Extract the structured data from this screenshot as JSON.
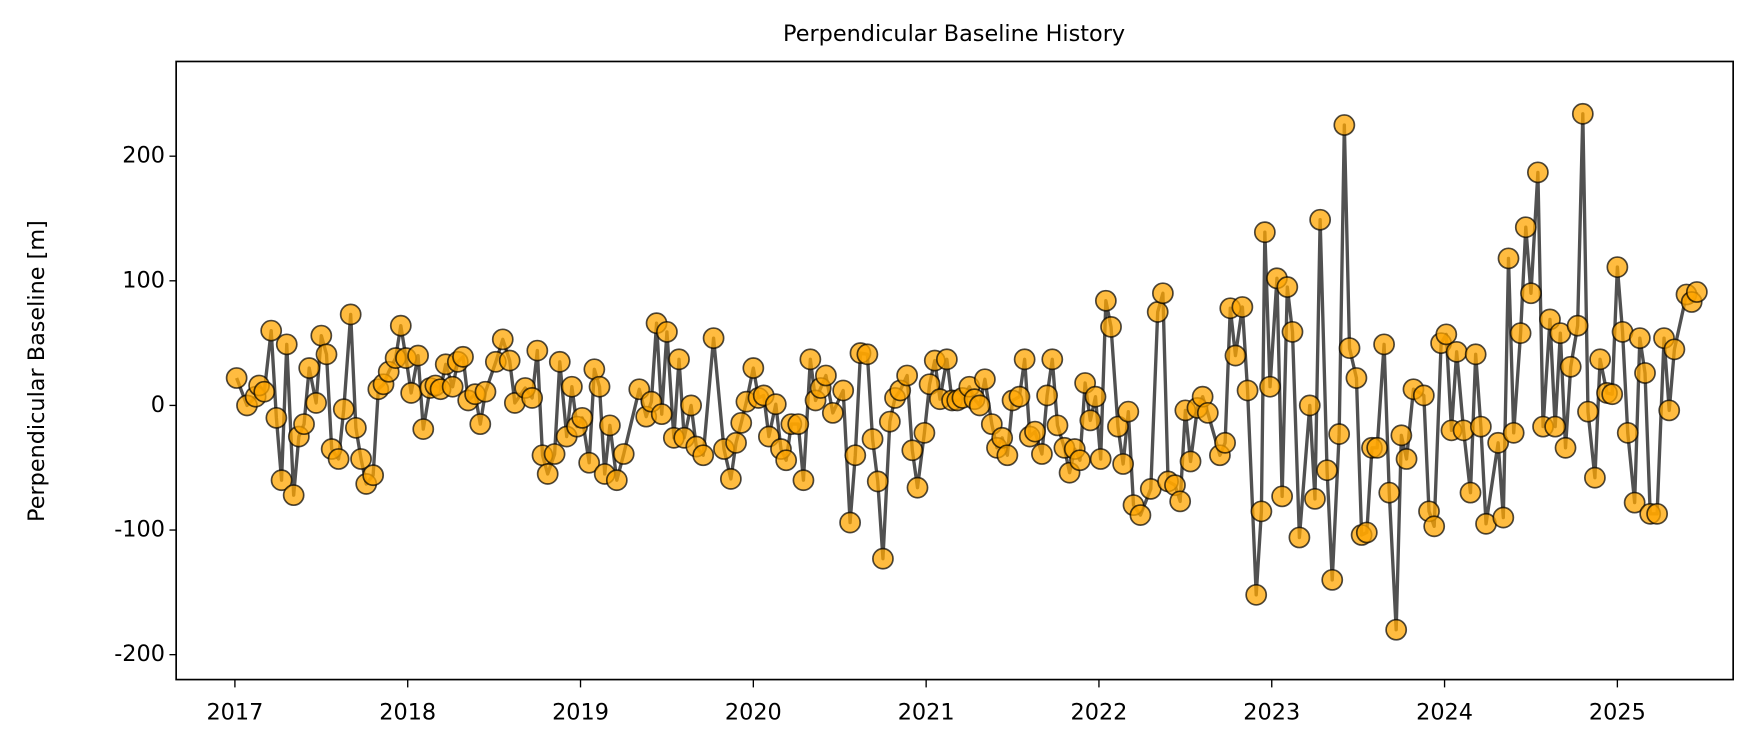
{
  "chart_data": {
    "type": "line",
    "title": "Perpendicular Baseline History",
    "y_label": "Perpendicular Baseline [m]",
    "x": [
      2017.01,
      2017.07,
      2017.12,
      2017.14,
      2017.17,
      2017.21,
      2017.24,
      2017.27,
      2017.3,
      2017.34,
      2017.37,
      2017.4,
      2017.43,
      2017.47,
      2017.5,
      2017.53,
      2017.56,
      2017.6,
      2017.63,
      2017.67,
      2017.7,
      2017.73,
      2017.76,
      2017.8,
      2017.83,
      2017.86,
      2017.89,
      2017.93,
      2017.96,
      2017.99,
      2018.02,
      2018.06,
      2018.09,
      2018.13,
      2018.16,
      2018.19,
      2018.22,
      2018.26,
      2018.29,
      2018.32,
      2018.35,
      2018.39,
      2018.42,
      2018.45,
      2018.51,
      2018.55,
      2018.59,
      2018.62,
      2018.68,
      2018.72,
      2018.75,
      2018.78,
      2018.81,
      2018.85,
      2018.88,
      2018.92,
      2018.95,
      2018.98,
      2019.01,
      2019.05,
      2019.08,
      2019.11,
      2019.14,
      2019.17,
      2019.21,
      2019.25,
      2019.34,
      2019.38,
      2019.41,
      2019.44,
      2019.47,
      2019.5,
      2019.54,
      2019.57,
      2019.6,
      2019.64,
      2019.67,
      2019.71,
      2019.77,
      2019.83,
      2019.87,
      2019.9,
      2019.93,
      2019.96,
      2020.0,
      2020.03,
      2020.06,
      2020.09,
      2020.13,
      2020.16,
      2020.19,
      2020.22,
      2020.26,
      2020.29,
      2020.33,
      2020.36,
      2020.39,
      2020.42,
      2020.46,
      2020.52,
      2020.56,
      2020.59,
      2020.62,
      2020.66,
      2020.69,
      2020.72,
      2020.75,
      2020.79,
      2020.82,
      2020.85,
      2020.89,
      2020.92,
      2020.95,
      2020.99,
      2021.02,
      2021.05,
      2021.08,
      2021.12,
      2021.15,
      2021.18,
      2021.21,
      2021.25,
      2021.28,
      2021.31,
      2021.34,
      2021.38,
      2021.41,
      2021.44,
      2021.47,
      2021.5,
      2021.54,
      2021.57,
      2021.6,
      2021.63,
      2021.67,
      2021.7,
      2021.73,
      2021.76,
      2021.8,
      2021.83,
      2021.86,
      2021.89,
      2021.92,
      2021.95,
      2021.98,
      2022.01,
      2022.04,
      2022.07,
      2022.11,
      2022.14,
      2022.17,
      2022.2,
      2022.24,
      2022.3,
      2022.34,
      2022.37,
      2022.4,
      2022.44,
      2022.47,
      2022.5,
      2022.53,
      2022.57,
      2022.6,
      2022.63,
      2022.7,
      2022.73,
      2022.76,
      2022.79,
      2022.83,
      2022.86,
      2022.91,
      2022.94,
      2022.96,
      2022.99,
      2023.03,
      2023.06,
      2023.09,
      2023.12,
      2023.16,
      2023.22,
      2023.25,
      2023.28,
      2023.32,
      2023.35,
      2023.39,
      2023.42,
      2023.45,
      2023.49,
      2023.52,
      2023.55,
      2023.58,
      2023.61,
      2023.65,
      2023.68,
      2023.72,
      2023.75,
      2023.78,
      2023.82,
      2023.88,
      2023.91,
      2023.94,
      2023.98,
      2024.01,
      2024.04,
      2024.07,
      2024.11,
      2024.15,
      2024.18,
      2024.21,
      2024.24,
      2024.31,
      2024.34,
      2024.37,
      2024.4,
      2024.44,
      2024.47,
      2024.5,
      2024.54,
      2024.57,
      2024.61,
      2024.64,
      2024.67,
      2024.7,
      2024.73,
      2024.77,
      2024.8,
      2024.83,
      2024.87,
      2024.9,
      2024.94,
      2024.97,
      2025.0,
      2025.03,
      2025.06,
      2025.1,
      2025.13,
      2025.16,
      2025.19,
      2025.23,
      2025.27,
      2025.3,
      2025.33,
      2025.4,
      2025.43,
      2025.46
    ],
    "values": [
      22,
      0,
      7,
      16,
      11,
      60,
      -10,
      -60,
      49,
      -72,
      -25,
      -15,
      30,
      2,
      56,
      41,
      -35,
      -43,
      -3,
      73,
      -18,
      -43,
      -63,
      -56,
      13,
      17,
      27,
      38,
      64,
      38,
      10,
      40,
      -19,
      14,
      16,
      13,
      33,
      15,
      35,
      39,
      4,
      9,
      -15,
      11,
      35,
      53,
      36,
      2,
      14,
      6,
      44,
      -40,
      -55,
      -39,
      35,
      -25,
      15,
      -17,
      -10,
      -46,
      29,
      15,
      -55,
      -16,
      -60,
      -39,
      13,
      -9,
      3,
      66,
      -7,
      59,
      -26,
      37,
      -26,
      0,
      -33,
      -40,
      54,
      -35,
      -59,
      -30,
      -14,
      3,
      30,
      6,
      8,
      -25,
      1,
      -35,
      -44,
      -15,
      -15,
      -60,
      37,
      4,
      14,
      24,
      -6,
      12,
      -94,
      -40,
      42,
      41,
      -27,
      -61,
      -123,
      -13,
      6,
      12,
      24,
      -36,
      -66,
      -22,
      17,
      36,
      5,
      37,
      4,
      4,
      6,
      15,
      5,
      0,
      21,
      -15,
      -34,
      -26,
      -40,
      4,
      7,
      37,
      -25,
      -21,
      -39,
      8,
      37,
      -16,
      -34,
      -54,
      -35,
      -44,
      18,
      -12,
      7,
      -43,
      84,
      63,
      -17,
      -47,
      -5,
      -80,
      -88,
      -67,
      75,
      90,
      -61,
      -64,
      -77,
      -4,
      -45,
      -2,
      7,
      -6,
      -40,
      -30,
      78,
      40,
      79,
      12,
      -152,
      -85,
      139,
      15,
      102,
      -73,
      95,
      59,
      -106,
      0,
      -75,
      149,
      -52,
      -140,
      -23,
      225,
      46,
      22,
      -104,
      -102,
      -34,
      -34,
      49,
      -70,
      -180,
      -24,
      -43,
      13,
      8,
      -85,
      -97,
      50,
      57,
      -20,
      43,
      -20,
      -70,
      41,
      -17,
      -95,
      -30,
      -90,
      118,
      -22,
      58,
      143,
      90,
      187,
      -17,
      69,
      -17,
      58,
      -34,
      31,
      64,
      234,
      -5,
      -58,
      37,
      10,
      9,
      111,
      59,
      -22,
      -78,
      54,
      26,
      -87,
      -87,
      54,
      -4,
      45,
      89,
      83,
      91
    ],
    "color": "#ffa500",
    "line_color": "#333333",
    "xlim": [
      2016.66,
      2025.67
    ],
    "xticks": [
      2017,
      2018,
      2019,
      2020,
      2021,
      2022,
      2023,
      2024,
      2025
    ],
    "ylim": [
      -220,
      276
    ],
    "yticks": [
      -200,
      -100,
      0,
      100,
      200
    ]
  }
}
